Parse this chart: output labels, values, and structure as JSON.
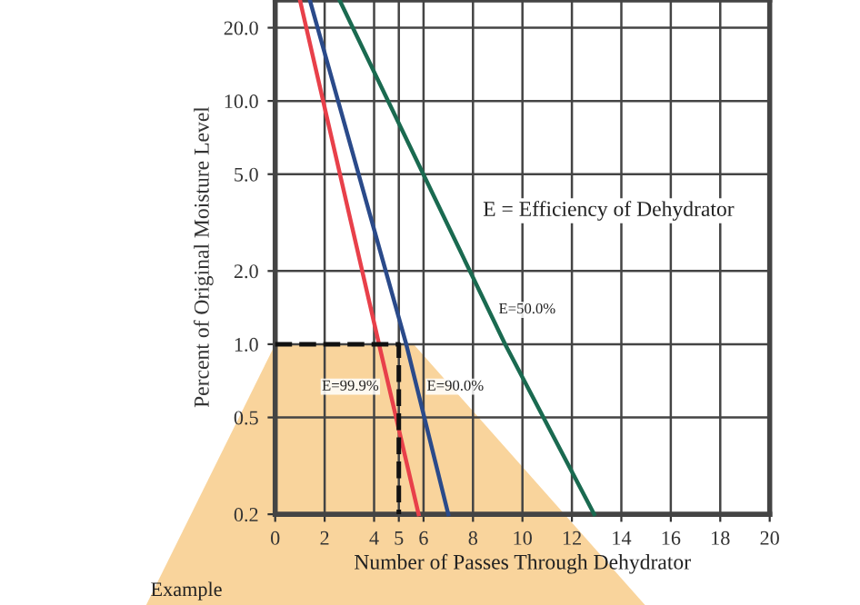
{
  "chart_data": {
    "type": "line",
    "xlabel": "Number of Passes Through Dehydrator",
    "ylabel": "Percent of Original Moisture Level",
    "annotations": [
      "E = Efficiency of Dehydrator",
      "Example"
    ],
    "series": [
      {
        "name": "E=99.9%",
        "color": "#e8404a",
        "x": [
          1.0,
          4.2,
          5.8
        ],
        "values": [
          26,
          1.0,
          0.2
        ]
      },
      {
        "name": "E=90.0%",
        "color": "#2a4a8a",
        "x": [
          1.4,
          5.3,
          7.0
        ],
        "values": [
          26,
          1.0,
          0.2
        ]
      },
      {
        "name": "E=50.0%",
        "color": "#1a6a50",
        "x": [
          2.6,
          9.3,
          12.9
        ],
        "values": [
          26,
          1.0,
          0.2
        ]
      },
      {
        "color": "#111111",
        "line_style": "dashed",
        "x": [
          0,
          5,
          5
        ],
        "values": [
          1.0,
          1.0,
          0.2
        ]
      }
    ],
    "xlim": [
      0,
      20
    ],
    "xticks": [
      0,
      2,
      4,
      5,
      6,
      8,
      10,
      12,
      14,
      16,
      18,
      20
    ],
    "ylim": [
      0.2,
      26
    ],
    "yticks": [
      {
        "value": 0.2,
        "label": "0.2"
      },
      {
        "value": 0.5,
        "label": "0.5"
      },
      {
        "value": 1,
        "label": "1.0"
      },
      {
        "value": 2,
        "label": "2.0"
      },
      {
        "value": 5,
        "label": "5.0"
      },
      {
        "value": 10,
        "label": "10.0"
      },
      {
        "value": 20,
        "label": "20.0"
      }
    ],
    "grid": true,
    "log": true
  }
}
